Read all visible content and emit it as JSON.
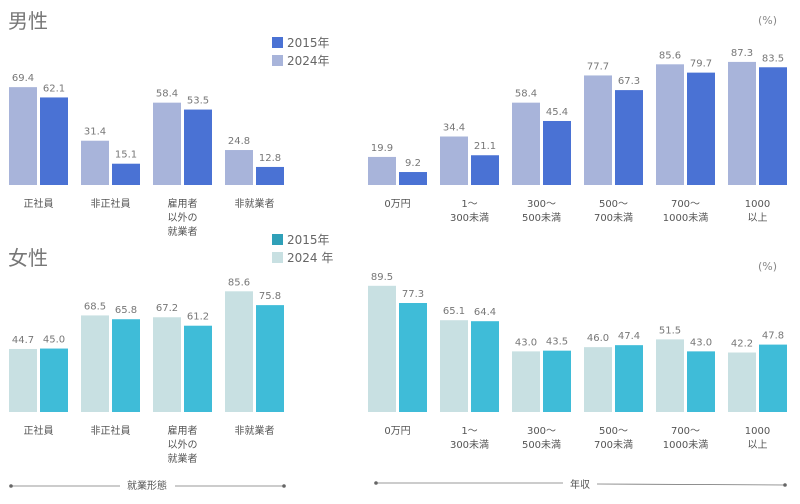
{
  "chart_data": [
    {
      "type": "bar",
      "title": "男性",
      "unit": "(%)",
      "colors": {
        "2015年": "#4a72d4",
        "2024年": "#a8b4da"
      },
      "legend": [
        "2015年",
        "2024年"
      ],
      "groups": [
        {
          "xlabel": "就業形態",
          "categories": [
            [
              "正社員"
            ],
            [
              "非正社員"
            ],
            [
              "雇用者",
              "以外の",
              "就業者"
            ],
            [
              "非就業者"
            ]
          ],
          "series": [
            {
              "name": "2024年",
              "values": [
                69.4,
                31.4,
                58.4,
                24.8
              ]
            },
            {
              "name": "2015年",
              "values": [
                62.1,
                15.1,
                53.5,
                12.8
              ]
            }
          ]
        },
        {
          "xlabel": "年収",
          "categories": [
            [
              "0万円"
            ],
            [
              "1〜",
              "300未満"
            ],
            [
              "300〜",
              "500未満"
            ],
            [
              "500〜",
              "700未満"
            ],
            [
              "700〜",
              "1000未満"
            ],
            [
              "1000",
              "以上"
            ]
          ],
          "series": [
            {
              "name": "2024年",
              "values": [
                19.9,
                34.4,
                58.4,
                77.7,
                85.6,
                87.3
              ]
            },
            {
              "name": "2015年",
              "values": [
                9.2,
                21.1,
                45.4,
                67.3,
                79.7,
                83.5
              ]
            }
          ]
        }
      ]
    },
    {
      "type": "bar",
      "title": "女性",
      "unit": "(%)",
      "colors": {
        "2015年": "#3fbcd8",
        "2024年": "#c8e0e2"
      },
      "legend_swatch_2015": "#2fa0b8",
      "legend": [
        "2015年",
        "2024 年"
      ],
      "groups": [
        {
          "xlabel": "就業形態",
          "categories": [
            [
              "正社員"
            ],
            [
              "非正社員"
            ],
            [
              "雇用者",
              "以外の",
              "就業者"
            ],
            [
              "非就業者"
            ]
          ],
          "series": [
            {
              "name": "2024年",
              "values": [
                44.7,
                68.5,
                67.2,
                85.6
              ]
            },
            {
              "name": "2015年",
              "values": [
                45.0,
                65.8,
                61.2,
                75.8
              ]
            }
          ]
        },
        {
          "xlabel": "年収",
          "categories": [
            [
              "0万円"
            ],
            [
              "1〜",
              "300未満"
            ],
            [
              "300〜",
              "500未満"
            ],
            [
              "500〜",
              "700未満"
            ],
            [
              "700〜",
              "1000未満"
            ],
            [
              "1000",
              "以上"
            ]
          ],
          "series": [
            {
              "name": "2024年",
              "values": [
                89.5,
                65.1,
                43.0,
                46.0,
                51.5,
                42.2
              ]
            },
            {
              "name": "2015年",
              "values": [
                77.3,
                64.4,
                43.5,
                47.4,
                43.0,
                47.8
              ]
            }
          ]
        }
      ]
    }
  ],
  "axis_labels": {
    "left": "就業形態",
    "right": "年収"
  }
}
